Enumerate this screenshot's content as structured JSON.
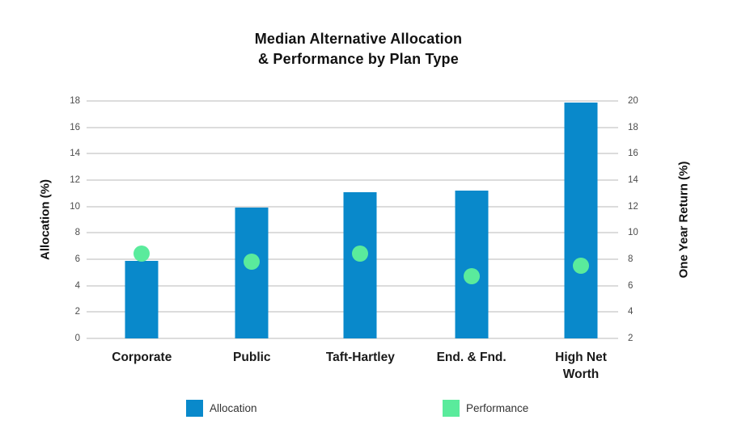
{
  "title": {
    "line1": "Median Alternative Allocation",
    "line2": "& Performance by Plan Type"
  },
  "chart_data": {
    "type": "bar",
    "subtype": "bars-with-scatter-overlay",
    "title": "Median Alternative Allocation & Performance by Plan Type",
    "categories": [
      "Corporate",
      "Public",
      "Taft-Hartley",
      "End. & Fnd.",
      "High Net\nWorth"
    ],
    "series": [
      {
        "name": "Allocation",
        "type": "bar",
        "axis": "left",
        "color": "#0989cb",
        "values": [
          5.9,
          9.9,
          11.1,
          11.2,
          17.9
        ]
      },
      {
        "name": "Performance",
        "type": "scatter",
        "axis": "right",
        "color": "#5aeb9c",
        "values": [
          8.4,
          7.8,
          8.4,
          6.7,
          7.5
        ]
      }
    ],
    "left_axis": {
      "label": "Allocation (%)",
      "min": 0,
      "max": 18,
      "tick_step": 2,
      "ticks": [
        0,
        2,
        4,
        6,
        8,
        10,
        12,
        14,
        16,
        18
      ]
    },
    "right_axis": {
      "label": "One Year Return (%)",
      "min": 2,
      "max": 20,
      "tick_step": 2,
      "ticks": [
        2,
        4,
        6,
        8,
        10,
        12,
        14,
        16,
        18,
        20
      ]
    },
    "grid": true,
    "legend_position": "bottom"
  },
  "legend": {
    "items": [
      {
        "label": "Allocation",
        "color": "#0989cb"
      },
      {
        "label": "Performance",
        "color": "#5aeb9c"
      }
    ]
  },
  "colors": {
    "bar": "#0989cb",
    "dot": "#5aeb9c",
    "gridline": "#dcdcdc",
    "tick_text": "#4d4d4d",
    "label_text": "#1a1a1a",
    "background": "#ffffff"
  }
}
